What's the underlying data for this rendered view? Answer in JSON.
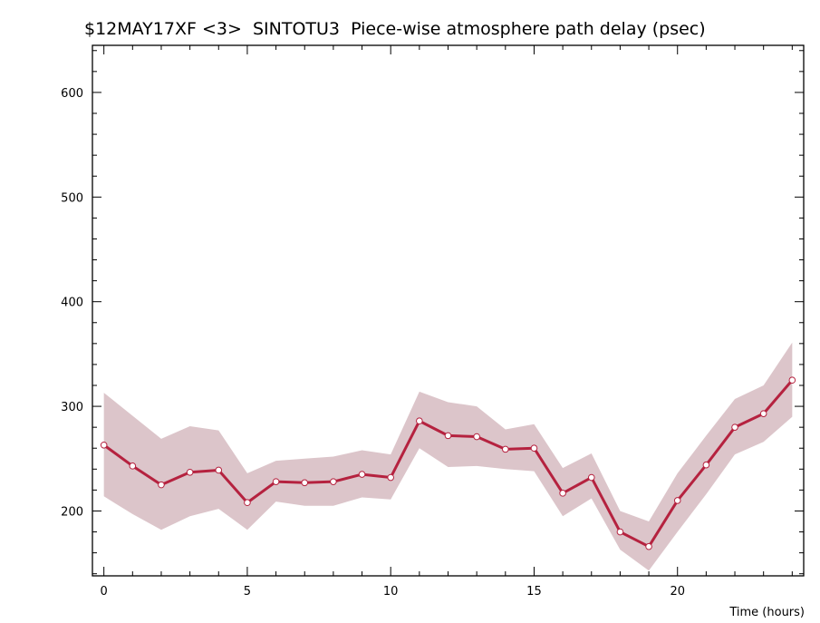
{
  "chart_data": {
    "type": "line",
    "title": "$12MAY17XF <3>  SINTOTU3  Piece-wise atmosphere path delay (psec)",
    "xlabel": "Time (hours)",
    "ylabel": "",
    "xlim": [
      -0.4,
      24.4
    ],
    "ylim": [
      138,
      645
    ],
    "x_ticks": [
      0,
      5,
      10,
      15,
      20
    ],
    "y_ticks": [
      200,
      300,
      400,
      500,
      600
    ],
    "x_tick_labels": [
      "0",
      "5",
      "10",
      "15",
      "20"
    ],
    "y_tick_labels": [
      "200",
      "300",
      "400",
      "500",
      "600"
    ],
    "grid": false,
    "x": [
      0,
      1,
      2,
      3,
      4,
      5,
      6,
      7,
      8,
      9,
      10,
      11,
      12,
      13,
      14,
      15,
      16,
      17,
      18,
      19,
      20,
      21,
      22,
      23,
      24
    ],
    "series": [
      {
        "values": [
          263,
          243,
          225,
          237,
          239,
          208,
          228,
          227,
          228,
          235,
          232,
          286,
          272,
          271,
          259,
          260,
          217,
          232,
          180,
          166,
          210,
          244,
          280,
          293,
          325
        ],
        "upper": [
          313,
          291,
          269,
          281,
          277,
          236,
          248,
          250,
          252,
          258,
          254,
          314,
          304,
          300,
          278,
          283,
          241,
          255,
          200,
          190,
          236,
          272,
          307,
          320,
          361
        ],
        "lower": [
          214,
          197,
          182,
          195,
          202,
          182,
          209,
          205,
          205,
          213,
          211,
          260,
          242,
          243,
          240,
          238,
          195,
          212,
          163,
          143,
          180,
          216,
          254,
          266,
          290
        ]
      }
    ],
    "colors": {
      "line": "#b5223f",
      "band": "#dcc5ca",
      "marker_fill": "#ffffff",
      "axis": "#000000"
    }
  }
}
